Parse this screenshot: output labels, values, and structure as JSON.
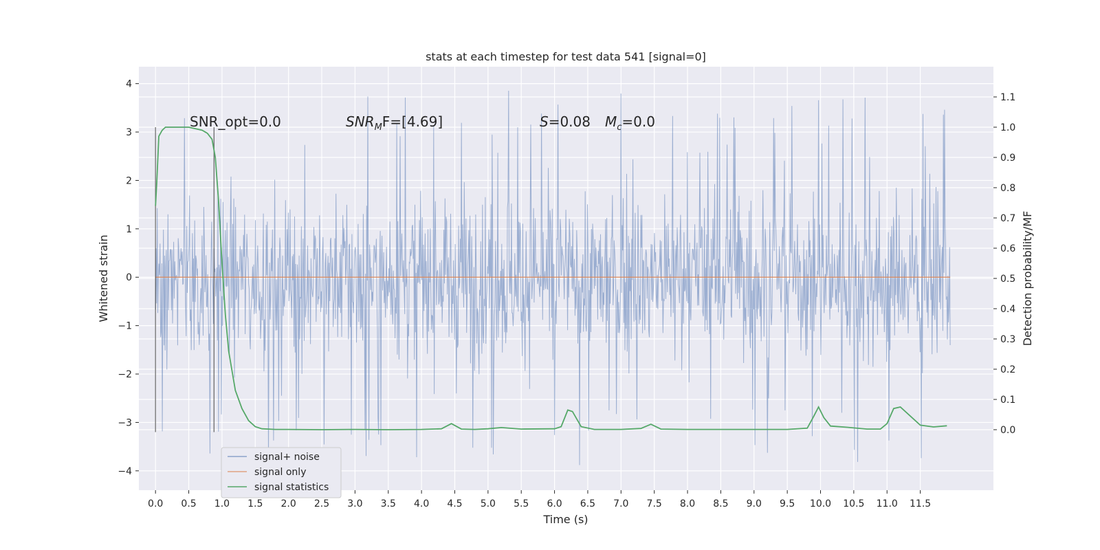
{
  "chart_data": {
    "type": "line",
    "title": "stats at each timestep for test data 541 [signal=0]",
    "xlabel": "Time (s)",
    "ylabel_left": "Whitened strain",
    "ylabel_right": "Detection probability/MF",
    "xlim": [
      -0.25,
      12.6
    ],
    "ylim_left": [
      -4.4,
      4.35
    ],
    "ylim_right": [
      -0.2,
      1.2
    ],
    "x_ticks": [
      "0.0",
      "0.5",
      "1.0",
      "1.5",
      "2.0",
      "2.5",
      "3.0",
      "3.5",
      "4.0",
      "4.5",
      "5.0",
      "5.5",
      "6.0",
      "6.5",
      "7.0",
      "7.5",
      "8.0",
      "8.5",
      "9.0",
      "9.5",
      "10.0",
      "10.5",
      "11.0",
      "11.5"
    ],
    "y_ticks_left": [
      "4",
      "3",
      "2",
      "1",
      "0",
      "−1",
      "−2",
      "−3",
      "−4"
    ],
    "y_ticks_right": [
      "1.1",
      "1.0",
      "0.9",
      "0.8",
      "0.7",
      "0.6",
      "0.5",
      "0.4",
      "0.3",
      "0.2",
      "0.1",
      "0.0"
    ],
    "grid": true,
    "legend_position": "lower-left",
    "annotations": {
      "snr_opt": "SNR_opt=0.0",
      "snr_mf_base": "SNR",
      "snr_mf_sub": "M",
      "snr_mf_rest": "F=[4.69]",
      "s_var": "S",
      "s_val": "=0.08",
      "mc_var": "M",
      "mc_sub": "c",
      "mc_val": "=0.0"
    },
    "vertical_lines_x": [
      0.0,
      0.88
    ],
    "series": [
      {
        "name": "signal+ noise",
        "axis": "left",
        "color": "#4c72b0",
        "kind": "noise",
        "x_range": [
          0.0,
          11.95
        ],
        "band": [
          -2.1,
          2.2
        ],
        "envelope": [
          -4.1,
          3.95
        ]
      },
      {
        "name": "signal only",
        "axis": "left",
        "color": "#dd8452",
        "x": [
          0.0,
          11.95
        ],
        "y": [
          0.0,
          0.0
        ]
      },
      {
        "name": "signal statistics",
        "axis": "right",
        "color": "#55a868",
        "x": [
          0.0,
          0.02,
          0.05,
          0.1,
          0.15,
          0.2,
          0.3,
          0.5,
          0.7,
          0.78,
          0.85,
          0.9,
          0.95,
          1.0,
          1.05,
          1.1,
          1.2,
          1.3,
          1.4,
          1.5,
          1.6,
          1.8,
          2.0,
          2.5,
          3.0,
          3.5,
          4.0,
          4.3,
          4.45,
          4.6,
          4.8,
          5.0,
          5.2,
          5.5,
          6.0,
          6.1,
          6.2,
          6.27,
          6.4,
          6.6,
          7.0,
          7.3,
          7.45,
          7.6,
          8.0,
          8.5,
          9.0,
          9.5,
          9.8,
          9.9,
          9.97,
          10.05,
          10.15,
          10.4,
          10.7,
          10.9,
          11.0,
          11.1,
          11.2,
          11.35,
          11.5,
          11.7,
          11.9
        ],
        "y": [
          0.74,
          0.82,
          0.97,
          0.99,
          1.0,
          1.0,
          1.0,
          1.0,
          0.99,
          0.98,
          0.96,
          0.9,
          0.75,
          0.55,
          0.38,
          0.26,
          0.13,
          0.07,
          0.03,
          0.01,
          0.003,
          0.001,
          0.001,
          0.0,
          0.001,
          0.0,
          0.001,
          0.003,
          0.02,
          0.002,
          0.001,
          0.003,
          0.007,
          0.002,
          0.003,
          0.01,
          0.065,
          0.06,
          0.01,
          0.001,
          0.001,
          0.004,
          0.018,
          0.002,
          0.001,
          0.001,
          0.001,
          0.001,
          0.005,
          0.045,
          0.075,
          0.04,
          0.012,
          0.008,
          0.002,
          0.002,
          0.02,
          0.07,
          0.075,
          0.045,
          0.015,
          0.009,
          0.013
        ]
      }
    ]
  }
}
